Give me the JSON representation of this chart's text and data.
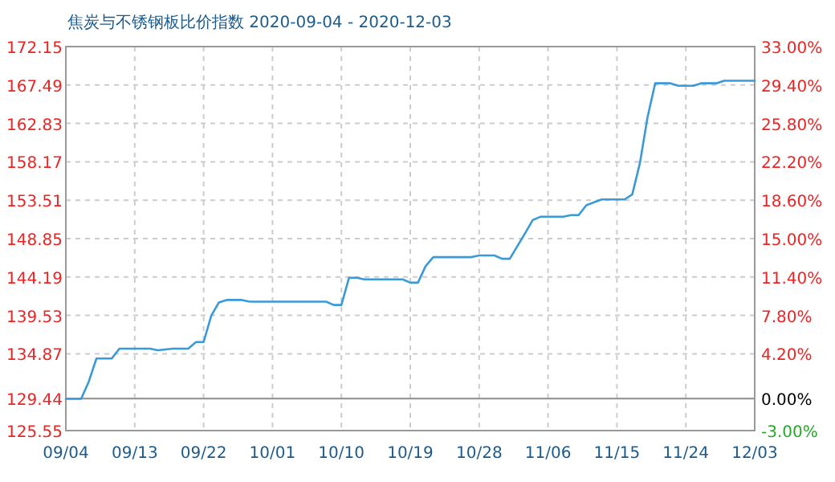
{
  "chart_data": {
    "type": "line",
    "title": "焦炭与不锈钢板比价指数 2020-09-04 - 2020-12-03",
    "x": [
      "2020-09-04",
      "2020-09-06",
      "2020-09-07",
      "2020-09-08",
      "2020-09-10",
      "2020-09-11",
      "2020-09-15",
      "2020-09-16",
      "2020-09-18",
      "2020-09-20",
      "2020-09-21",
      "2020-09-22",
      "2020-09-23",
      "2020-09-24",
      "2020-09-25",
      "2020-09-27",
      "2020-09-28",
      "2020-10-08",
      "2020-10-09",
      "2020-10-10",
      "2020-10-11",
      "2020-10-12",
      "2020-10-13",
      "2020-10-18",
      "2020-10-19",
      "2020-10-20",
      "2020-10-21",
      "2020-10-22",
      "2020-10-27",
      "2020-10-28",
      "2020-10-30",
      "2020-10-31",
      "2020-11-01",
      "2020-11-03",
      "2020-11-04",
      "2020-11-05",
      "2020-11-08",
      "2020-11-09",
      "2020-11-10",
      "2020-11-11",
      "2020-11-13",
      "2020-11-16",
      "2020-11-17",
      "2020-11-18",
      "2020-11-19",
      "2020-11-20",
      "2020-11-22",
      "2020-11-23",
      "2020-11-25",
      "2020-11-26",
      "2020-11-28",
      "2020-11-29",
      "2020-12-03"
    ],
    "series": [
      {
        "color": "#3a9ad9",
        "values": [
          129.4,
          129.4,
          131.5,
          134.3,
          134.3,
          135.5,
          135.5,
          135.3,
          135.5,
          135.5,
          136.3,
          136.3,
          139.5,
          141.1,
          141.4,
          141.4,
          141.2,
          141.2,
          140.8,
          140.8,
          144.1,
          144.1,
          143.9,
          143.9,
          143.5,
          143.5,
          145.5,
          146.6,
          146.6,
          146.8,
          146.8,
          146.4,
          146.4,
          149.5,
          151.1,
          151.5,
          151.5,
          151.7,
          151.7,
          152.9,
          153.6,
          153.6,
          154.2,
          158.0,
          163.6,
          167.7,
          167.7,
          167.4,
          167.4,
          167.7,
          167.7,
          168.0,
          168.0
        ]
      }
    ],
    "xlim": [
      "2020-09-04",
      "2020-12-03"
    ],
    "xticks": [
      {
        "value": "2020-09-04",
        "label": "09/04"
      },
      {
        "value": "2020-09-13",
        "label": "09/13"
      },
      {
        "value": "2020-09-22",
        "label": "09/22"
      },
      {
        "value": "2020-10-01",
        "label": "10/01"
      },
      {
        "value": "2020-10-10",
        "label": "10/10"
      },
      {
        "value": "2020-10-19",
        "label": "10/19"
      },
      {
        "value": "2020-10-28",
        "label": "10/28"
      },
      {
        "value": "2020-11-06",
        "label": "11/06"
      },
      {
        "value": "2020-11-15",
        "label": "11/15"
      },
      {
        "value": "2020-11-24",
        "label": "11/24"
      },
      {
        "value": "2020-12-03",
        "label": "12/03"
      }
    ],
    "ylim": [
      125.55,
      172.15
    ],
    "yticks": [
      125.55,
      129.44,
      134.87,
      139.53,
      144.19,
      148.85,
      153.51,
      158.17,
      162.83,
      167.49,
      172.15
    ],
    "y2lim": [
      -3,
      33
    ],
    "y2ticks": [
      {
        "value": -3,
        "label": "-3.00%"
      },
      {
        "value": 0,
        "label": "0.00%"
      },
      {
        "value": 4.2,
        "label": "4.20%"
      },
      {
        "value": 7.8,
        "label": "7.80%"
      },
      {
        "value": 11.4,
        "label": "11.40%"
      },
      {
        "value": 15,
        "label": "15.00%"
      },
      {
        "value": 18.6,
        "label": "18.60%"
      },
      {
        "value": 22.2,
        "label": "22.20%"
      },
      {
        "value": 25.8,
        "label": "25.80%"
      },
      {
        "value": 29.4,
        "label": "29.40%"
      },
      {
        "value": 33,
        "label": "33.00%"
      }
    ],
    "ref_lines": [
      {
        "axis": "y",
        "value": 129.44,
        "color": "#999999"
      }
    ],
    "grid": true,
    "marker": "none",
    "line_style": "solid"
  }
}
